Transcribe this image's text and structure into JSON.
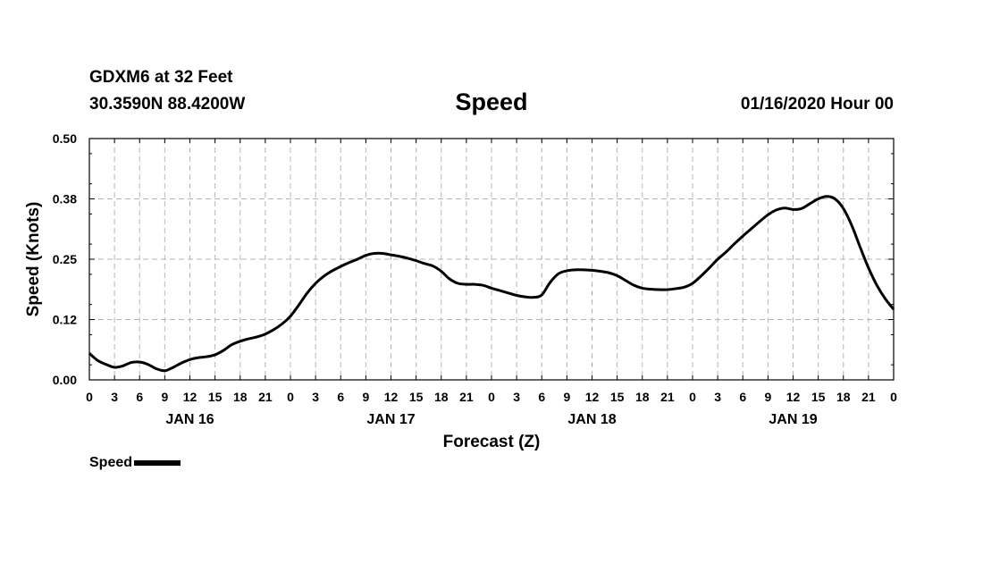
{
  "header": {
    "station": "GDXM6 at 32 Feet",
    "location": "30.3590N 88.4200W",
    "title": "Speed",
    "timestamp": "01/16/2020 Hour 00"
  },
  "legend": {
    "label": "Speed"
  },
  "chart_data": {
    "type": "line",
    "title": "Speed",
    "xlabel": "Forecast (Z)",
    "ylabel": "Speed (Knots)",
    "ylim": [
      0,
      0.5
    ],
    "xlim": [
      0,
      96
    ],
    "grid": true,
    "legend_position": "bottom-left",
    "y_ticks": [
      "0.00",
      "0.12",
      "0.25",
      "0.38",
      "0.50"
    ],
    "x_tick_labels": [
      "0",
      "3",
      "6",
      "9",
      "12",
      "15",
      "18",
      "21",
      "0",
      "3",
      "6",
      "9",
      "12",
      "15",
      "18",
      "21",
      "0",
      "3",
      "6",
      "9",
      "12",
      "15",
      "18",
      "21",
      "0",
      "3",
      "6",
      "9",
      "12",
      "15",
      "18",
      "21",
      "0"
    ],
    "day_labels": [
      {
        "hour": 12,
        "label": "JAN 16"
      },
      {
        "hour": 36,
        "label": "JAN 17"
      },
      {
        "hour": 60,
        "label": "JAN 18"
      },
      {
        "hour": 84,
        "label": "JAN 19"
      }
    ],
    "series": [
      {
        "name": "Speed",
        "color": "#000000",
        "x": [
          0,
          1,
          2,
          3,
          4,
          5,
          6,
          7,
          8,
          9,
          10,
          11,
          12,
          13,
          14,
          15,
          16,
          17,
          18,
          19,
          20,
          21,
          22,
          23,
          24,
          25,
          26,
          27,
          28,
          29,
          30,
          31,
          32,
          33,
          34,
          35,
          36,
          37,
          38,
          39,
          40,
          41,
          42,
          43,
          44,
          45,
          46,
          47,
          48,
          49,
          50,
          51,
          52,
          53,
          54,
          55,
          56,
          57,
          58,
          59,
          60,
          61,
          62,
          63,
          64,
          65,
          66,
          67,
          68,
          69,
          70,
          71,
          72,
          73,
          74,
          75,
          76,
          77,
          78,
          79,
          80,
          81,
          82,
          83,
          84,
          85,
          86,
          87,
          88,
          89,
          90,
          91,
          92,
          93,
          94,
          95,
          96
        ],
        "y": [
          0.055,
          0.04,
          0.032,
          0.026,
          0.029,
          0.036,
          0.037,
          0.032,
          0.023,
          0.019,
          0.026,
          0.035,
          0.042,
          0.046,
          0.048,
          0.052,
          0.061,
          0.073,
          0.08,
          0.085,
          0.089,
          0.095,
          0.104,
          0.116,
          0.132,
          0.155,
          0.18,
          0.2,
          0.215,
          0.226,
          0.235,
          0.243,
          0.25,
          0.258,
          0.262,
          0.262,
          0.259,
          0.256,
          0.252,
          0.247,
          0.241,
          0.236,
          0.225,
          0.209,
          0.2,
          0.198,
          0.198,
          0.196,
          0.19,
          0.185,
          0.18,
          0.175,
          0.172,
          0.171,
          0.176,
          0.202,
          0.22,
          0.226,
          0.228,
          0.228,
          0.227,
          0.225,
          0.222,
          0.216,
          0.206,
          0.196,
          0.19,
          0.188,
          0.187,
          0.187,
          0.189,
          0.192,
          0.2,
          0.215,
          0.232,
          0.25,
          0.265,
          0.282,
          0.298,
          0.313,
          0.328,
          0.342,
          0.352,
          0.356,
          0.353,
          0.355,
          0.365,
          0.375,
          0.38,
          0.375,
          0.355,
          0.32,
          0.275,
          0.232,
          0.196,
          0.168,
          0.146
        ]
      }
    ]
  }
}
